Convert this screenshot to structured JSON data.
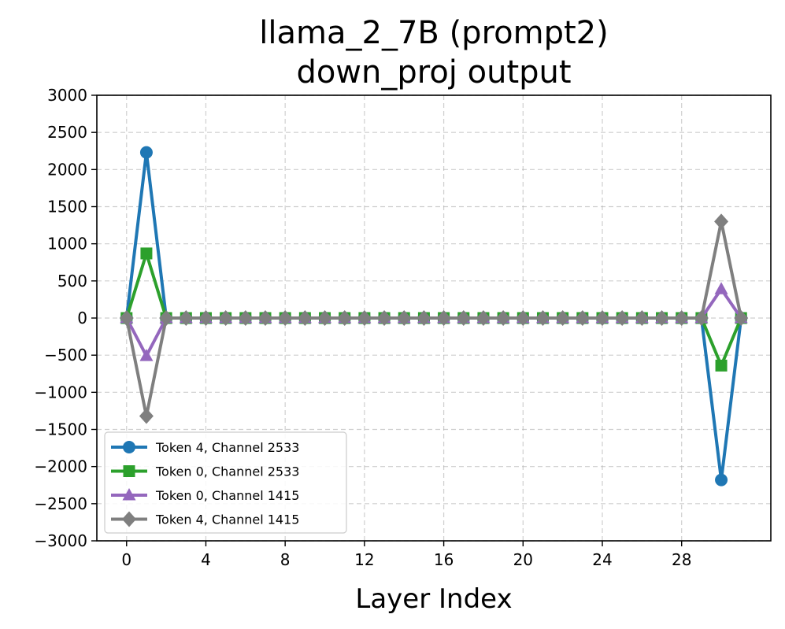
{
  "chart_data": {
    "type": "line",
    "title_line1": "llama_2_7B (prompt2)",
    "title_line2": "down_proj output",
    "xlabel": "Layer Index",
    "ylabel": "",
    "xlim": [
      -1.5,
      32.5
    ],
    "ylim": [
      -3000,
      3000
    ],
    "xticks": [
      0,
      4,
      8,
      12,
      16,
      20,
      24,
      28
    ],
    "yticks": [
      3000,
      2500,
      2000,
      1500,
      1000,
      500,
      0,
      -500,
      -1000,
      -1500,
      -2000,
      -2500,
      -3000
    ],
    "ytick_labels": [
      "3000",
      "2500",
      "2000",
      "1500",
      "1000",
      "500",
      "0",
      "−0500",
      "−1000",
      "−1500",
      "−2000",
      "−2500",
      "−3000"
    ],
    "grid": true,
    "legend_position": "lower-left",
    "x": [
      0,
      1,
      2,
      3,
      4,
      5,
      6,
      7,
      8,
      9,
      10,
      11,
      12,
      13,
      14,
      15,
      16,
      17,
      18,
      19,
      20,
      21,
      22,
      23,
      24,
      25,
      26,
      27,
      28,
      29,
      30,
      31
    ],
    "series": [
      {
        "name": "Token 4, Channel 2533",
        "color": "#1f77b4",
        "marker": "circle",
        "values": [
          0,
          2230,
          0,
          0,
          0,
          0,
          0,
          0,
          0,
          0,
          0,
          0,
          0,
          0,
          0,
          0,
          0,
          0,
          0,
          0,
          0,
          0,
          0,
          0,
          0,
          0,
          0,
          0,
          0,
          0,
          -2180,
          0
        ]
      },
      {
        "name": "Token 0, Channel 2533",
        "color": "#2ca02c",
        "marker": "square",
        "values": [
          0,
          870,
          0,
          0,
          0,
          0,
          0,
          0,
          0,
          0,
          0,
          0,
          0,
          0,
          0,
          0,
          0,
          0,
          0,
          0,
          0,
          0,
          0,
          0,
          0,
          0,
          0,
          0,
          0,
          0,
          -640,
          0
        ]
      },
      {
        "name": "Token 0, Channel 1415",
        "color": "#9467bd",
        "marker": "triangle",
        "values": [
          0,
          -510,
          0,
          0,
          0,
          0,
          0,
          0,
          0,
          0,
          0,
          0,
          0,
          0,
          0,
          0,
          0,
          0,
          0,
          0,
          0,
          0,
          0,
          0,
          0,
          0,
          0,
          0,
          0,
          0,
          390,
          0
        ]
      },
      {
        "name": "Token 4, Channel 1415",
        "color": "#7f7f7f",
        "marker": "diamond",
        "values": [
          0,
          -1320,
          0,
          0,
          0,
          0,
          0,
          0,
          0,
          0,
          0,
          0,
          0,
          0,
          0,
          0,
          0,
          0,
          0,
          0,
          0,
          0,
          0,
          0,
          0,
          0,
          0,
          0,
          0,
          0,
          1300,
          0
        ]
      }
    ]
  }
}
